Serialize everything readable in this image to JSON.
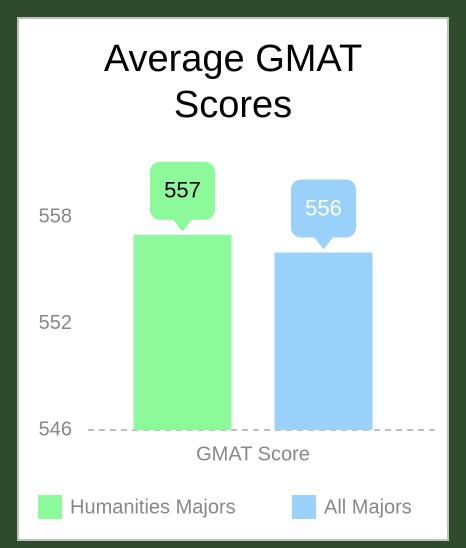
{
  "chart_data": {
    "type": "bar",
    "title": "Average GMAT Scores",
    "categories": [
      "GMAT Score"
    ],
    "series": [
      {
        "name": "Humanities Majors",
        "color": "#8cfa9b",
        "values": [
          557
        ]
      },
      {
        "name": "All Majors",
        "color": "#99d1fb",
        "values": [
          556
        ]
      }
    ],
    "ylim": [
      546,
      560
    ],
    "yticks": [
      546,
      552,
      558
    ],
    "legend": "bottom"
  }
}
